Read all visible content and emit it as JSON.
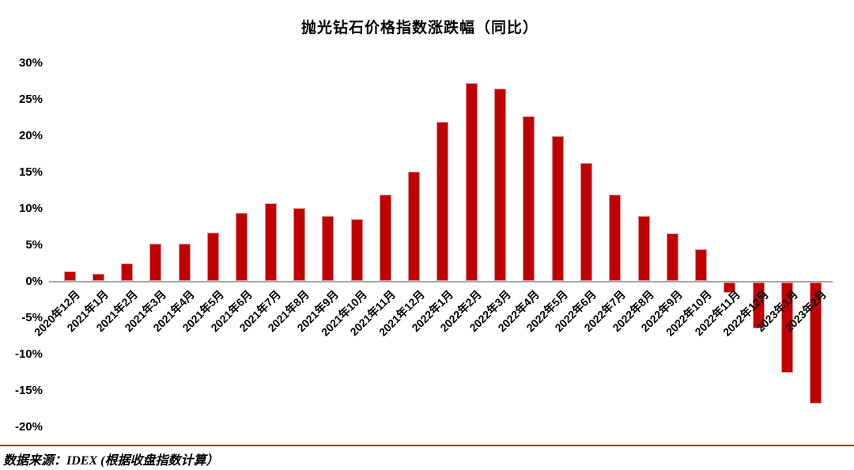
{
  "title": "抛光钻石价格指数涨跌幅（同比）",
  "source": {
    "text": "数据来源：IDEX (根据收盘指数计算）"
  },
  "chart_data": {
    "type": "bar",
    "title": "抛光钻石价格指数涨跌幅（同比）",
    "categories": [
      "2020年12月",
      "2021年1月",
      "2021年2月",
      "2021年3月",
      "2021年4月",
      "2021年5月",
      "2021年6月",
      "2021年7月",
      "2021年8月",
      "2021年9月",
      "2021年10月",
      "2021年11月",
      "2021年12月",
      "2022年1月",
      "2022年2月",
      "2022年3月",
      "2022年4月",
      "2022年5月",
      "2022年6月",
      "2022年7月",
      "2022年8月",
      "2022年9月",
      "2022年10月",
      "2022年11月",
      "2022年12月",
      "2023年1月",
      "2023年2月"
    ],
    "values": [
      1.3,
      1.0,
      2.4,
      5.1,
      5.1,
      6.6,
      9.3,
      10.6,
      10.0,
      8.9,
      8.5,
      11.9,
      15.0,
      21.8,
      27.2,
      26.4,
      22.6,
      19.9,
      16.2,
      11.9,
      8.9,
      6.5,
      4.3,
      -1.4,
      -6.3,
      -12.4,
      -16.6
    ],
    "xlabel": "",
    "ylabel": "",
    "ylim": [
      -20,
      30
    ],
    "ytick_step": 5,
    "ytick_labels": [
      "30%",
      "25%",
      "20%",
      "15%",
      "10%",
      "5%",
      "0%",
      "-5%",
      "-10%",
      "-15%",
      "-20%"
    ],
    "grid": false,
    "legend": false,
    "bar_color": "#c00000",
    "axis_color": "#a6a6a6",
    "divider_color": "#cc0000"
  }
}
